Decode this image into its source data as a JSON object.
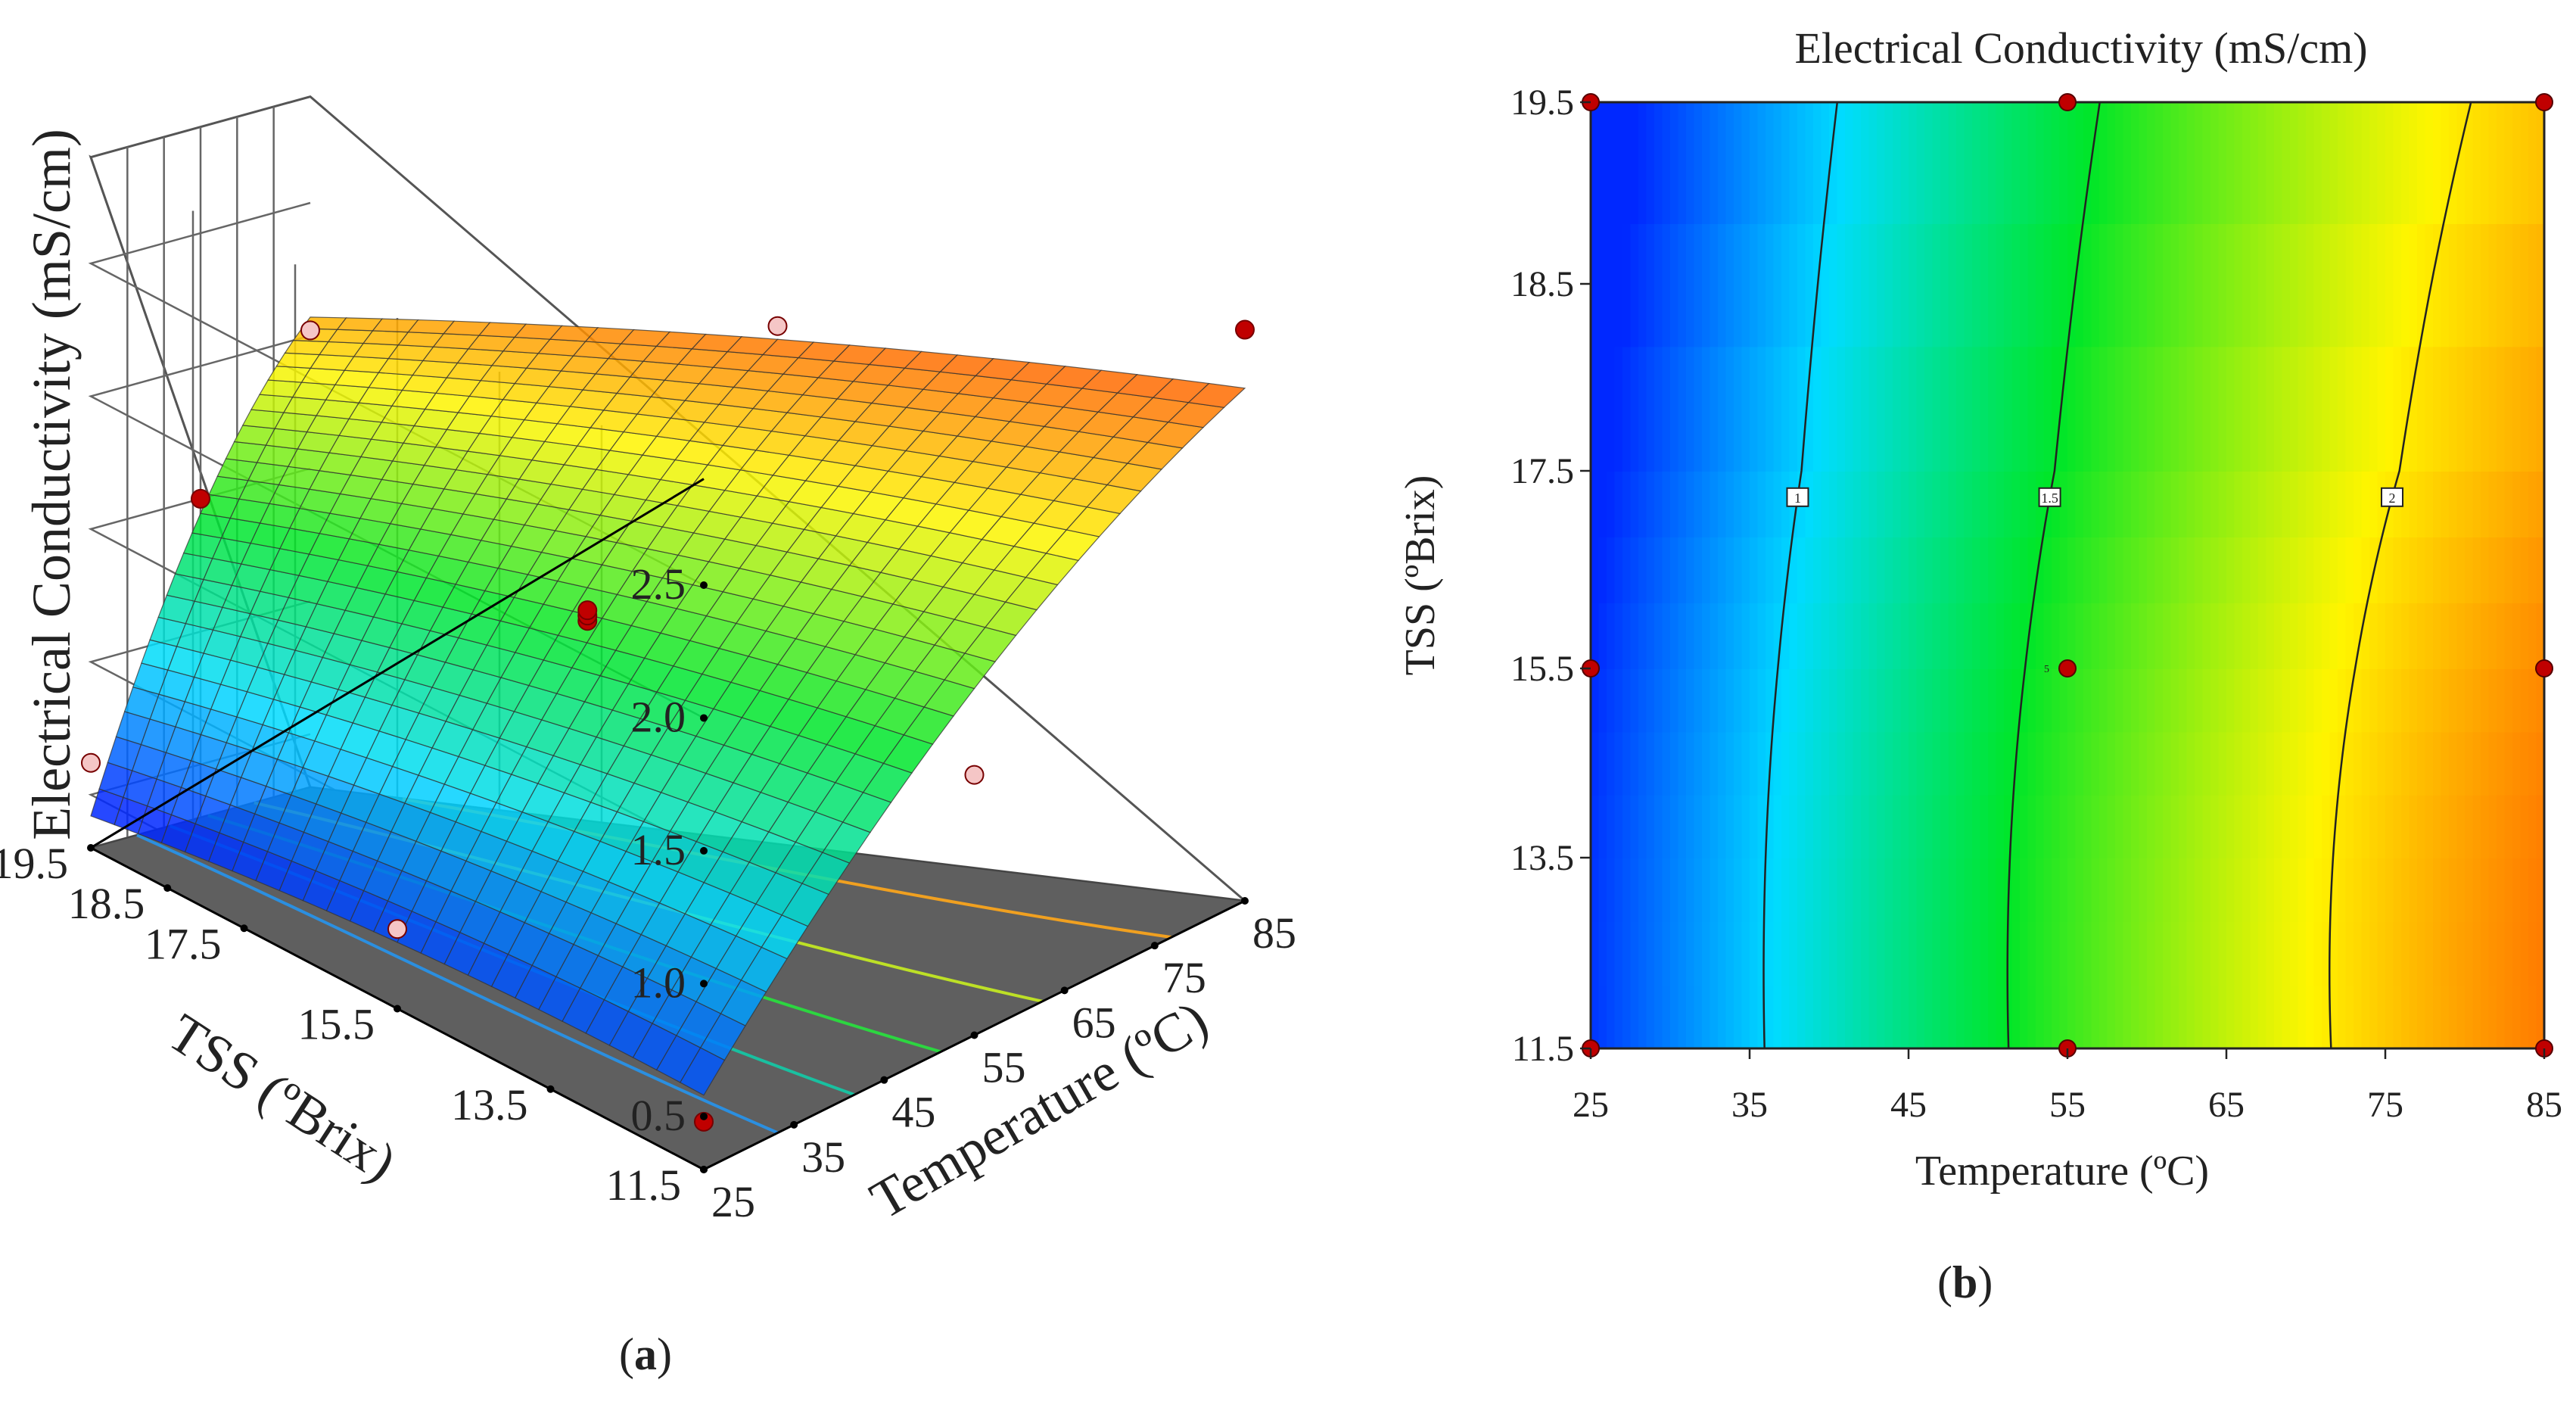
{
  "figure": {
    "panel_a_label": "a",
    "panel_b_label": "b"
  },
  "chart_data": [
    {
      "id": "a",
      "type": "surface",
      "zlabel": "Electrical Conductivity (mS/cm)",
      "xlabel": "Temperature (ºC)",
      "ylabel": "TSS (ºBrix)",
      "x_ticks": [
        "25",
        "35",
        "45",
        "55",
        "65",
        "75",
        "85"
      ],
      "y_ticks": [
        "11.5",
        "13.5",
        "15.5",
        "17.5",
        "18.5",
        "19.5"
      ],
      "z_ticks": [
        "0.5",
        "1.0",
        "1.5",
        "2.0",
        "2.5"
      ],
      "xlim": [
        25,
        85
      ],
      "ylim": [
        11.5,
        19.5
      ],
      "zlim": [
        0.3,
        2.5
      ],
      "design_points": [
        {
          "x": 25,
          "y": 11.5,
          "z": 0.48,
          "above": true
        },
        {
          "x": 25,
          "y": 19.5,
          "z": 0.62,
          "above": false
        },
        {
          "x": 85,
          "y": 11.5,
          "z": 2.45,
          "above": true
        },
        {
          "x": 85,
          "y": 19.5,
          "z": 2.02,
          "above": false
        },
        {
          "x": 55,
          "y": 15.5,
          "z": 1.45,
          "above": true
        },
        {
          "x": 55,
          "y": 15.5,
          "z": 1.47,
          "above": true
        },
        {
          "x": 55,
          "y": 15.5,
          "z": 1.49,
          "above": true
        },
        {
          "x": 25,
          "y": 15.5,
          "z": 0.6,
          "above": false
        },
        {
          "x": 55,
          "y": 19.5,
          "z": 1.5,
          "above": true
        },
        {
          "x": 85,
          "y": 15.5,
          "z": 2.25,
          "above": false
        },
        {
          "x": 55,
          "y": 11.5,
          "z": 1.28,
          "above": false
        }
      ]
    },
    {
      "id": "b",
      "type": "contour",
      "title": "Electrical Conductivity (mS/cm)",
      "xlabel": "Temperature (ºC)",
      "ylabel": "TSS (ºBrix)",
      "x_ticks": [
        "25",
        "35",
        "45",
        "55",
        "65",
        "75",
        "85"
      ],
      "y_ticks": [
        "11.5",
        "13.5",
        "15.5",
        "17.5",
        "18.5",
        "19.5"
      ],
      "xlim": [
        25,
        85
      ],
      "ylim": [
        11.5,
        19.5
      ],
      "contour_labels": [
        "1",
        "1.5",
        "2"
      ],
      "contour_levels": [
        1,
        1.5,
        2
      ],
      "center_point_label": "5",
      "design_points": [
        {
          "x": 25,
          "y": 19.5
        },
        {
          "x": 55,
          "y": 19.5
        },
        {
          "x": 85,
          "y": 19.5
        },
        {
          "x": 25,
          "y": 15.5
        },
        {
          "x": 55,
          "y": 15.5
        },
        {
          "x": 85,
          "y": 15.5
        },
        {
          "x": 25,
          "y": 11.5
        },
        {
          "x": 55,
          "y": 11.5
        },
        {
          "x": 85,
          "y": 11.5
        }
      ],
      "color_low": "#0030ff",
      "color_mid": "#00ff40",
      "color_high": "#ff1500"
    }
  ]
}
